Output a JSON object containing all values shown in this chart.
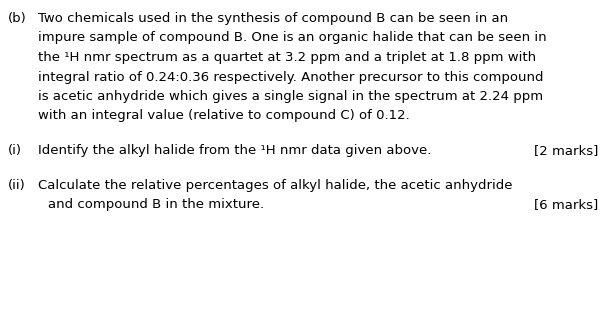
{
  "background_color": "#ffffff",
  "text_color": "#000000",
  "font_size": 9.5,
  "label_b": "(b)",
  "paragraph": [
    "Two chemicals used in the synthesis of compound B can be seen in an",
    "impure sample of compound B. One is an organic halide that can be seen in",
    "the ¹H nmr spectrum as a quartet at 3.2 ppm and a triplet at 1.8 ppm with",
    "integral ratio of 0.24:0.36 respectively. Another precursor to this compound",
    "is acetic anhydride which gives a single signal in the spectrum at 2.24 ppm",
    "with an integral value (relative to compound C) of 0.12."
  ],
  "sub_i_label": "(i)",
  "sub_i_text": "Identify the alkyl halide from the ¹H nmr data given above.",
  "sub_i_marks": "[2 marks]",
  "sub_ii_label": "(ii)",
  "sub_ii_line1": "Calculate the relative percentages of alkyl halide, the acetic anhydride",
  "sub_ii_line2": "and compound B in the mixture.",
  "sub_ii_marks": "[6 marks]"
}
